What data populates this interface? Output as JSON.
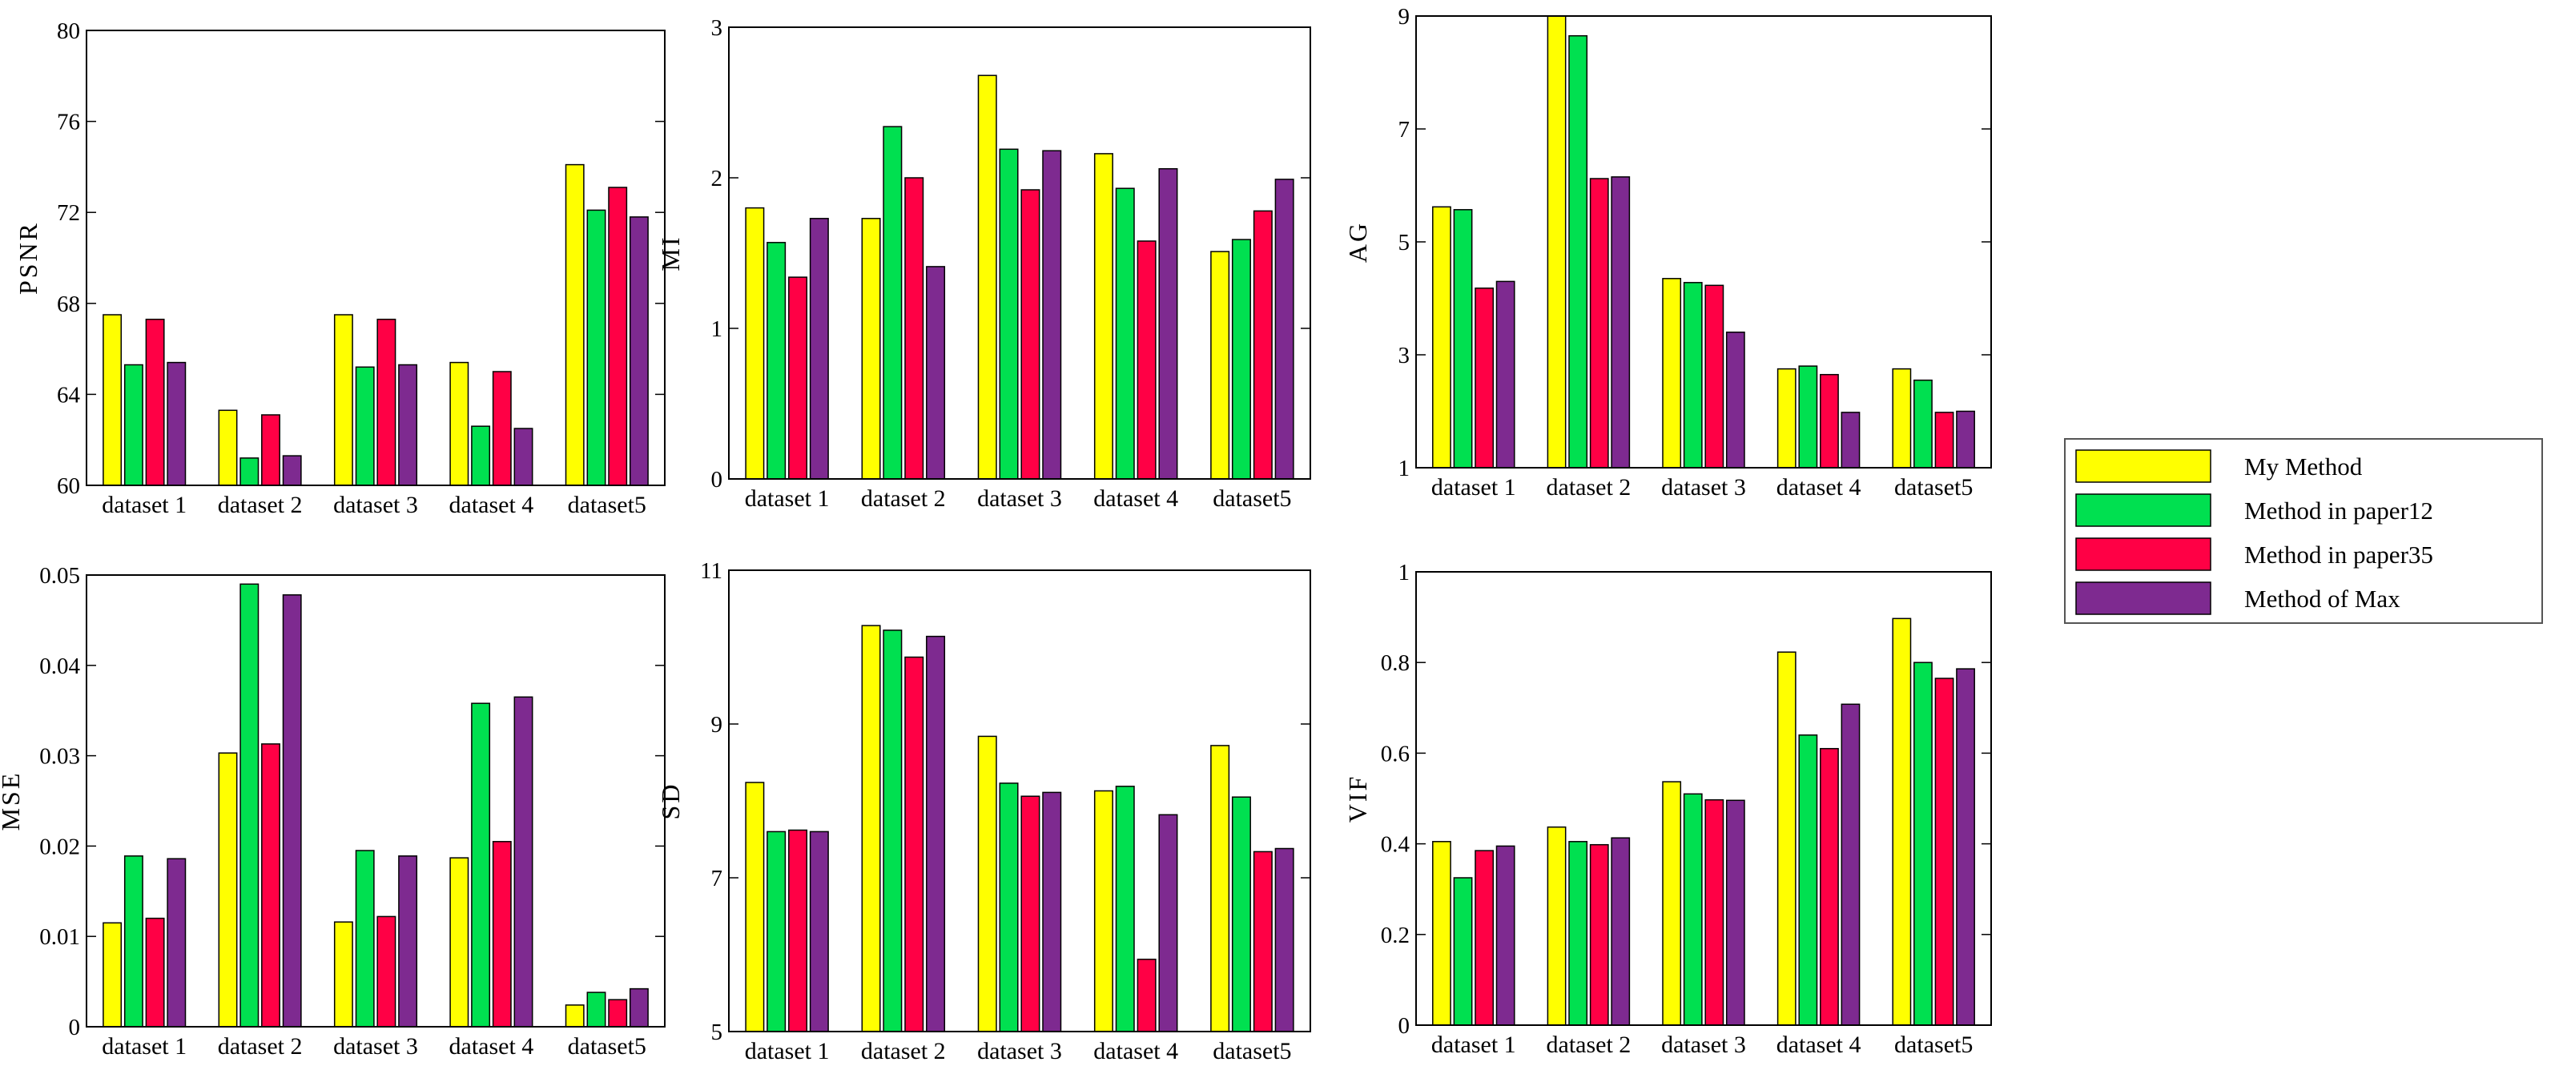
{
  "series_colors": [
    "#ffff00",
    "#00e050",
    "#ff0045",
    "#7e2a90"
  ],
  "legend": [
    "My Method",
    "Method in paper12",
    "Method in paper35",
    "Method of Max"
  ],
  "chart_data": [
    {
      "type": "bar",
      "ylabel": "PSNR",
      "ylim": [
        60,
        80
      ],
      "yticks": [
        60,
        64,
        68,
        72,
        76,
        80
      ],
      "categories": [
        "dataset 1",
        "dataset 2",
        "dataset 3",
        "dataset 4",
        "dataset5"
      ],
      "series": [
        {
          "name": "My Method",
          "values": [
            67.5,
            63.3,
            67.5,
            65.4,
            74.1
          ]
        },
        {
          "name": "Method in paper12",
          "values": [
            65.3,
            61.2,
            65.2,
            62.6,
            72.1
          ]
        },
        {
          "name": "Method in paper35",
          "values": [
            67.3,
            63.1,
            67.3,
            65.0,
            73.1
          ]
        },
        {
          "name": "Method of Max",
          "values": [
            65.4,
            61.3,
            65.3,
            62.5,
            71.8
          ]
        }
      ]
    },
    {
      "type": "bar",
      "ylabel": "MI",
      "ylim": [
        0,
        3
      ],
      "yticks": [
        0,
        1,
        2,
        3
      ],
      "categories": [
        "dataset 1",
        "dataset 2",
        "dataset 3",
        "dataset 4",
        "dataset5"
      ],
      "series": [
        {
          "name": "My Method",
          "values": [
            1.8,
            1.73,
            2.68,
            2.16,
            1.51
          ]
        },
        {
          "name": "Method in paper12",
          "values": [
            1.57,
            2.34,
            2.19,
            1.93,
            1.59
          ]
        },
        {
          "name": "Method in paper35",
          "values": [
            1.34,
            2.0,
            1.92,
            1.58,
            1.78
          ]
        },
        {
          "name": "Method of Max",
          "values": [
            1.73,
            1.41,
            2.18,
            2.06,
            1.99
          ]
        }
      ]
    },
    {
      "type": "bar",
      "ylabel": "AG",
      "ylim": [
        1,
        9
      ],
      "yticks": [
        1,
        3,
        5,
        7,
        9
      ],
      "categories": [
        "dataset 1",
        "dataset 2",
        "dataset 3",
        "dataset 4",
        "dataset5"
      ],
      "series": [
        {
          "name": "My Method",
          "values": [
            5.62,
            9.0,
            4.35,
            2.75,
            2.75
          ]
        },
        {
          "name": "Method in paper12",
          "values": [
            5.57,
            8.65,
            4.28,
            2.8,
            2.55
          ]
        },
        {
          "name": "Method in paper35",
          "values": [
            4.18,
            6.12,
            4.23,
            2.65,
            1.98
          ]
        },
        {
          "name": "Method of Max",
          "values": [
            4.3,
            6.15,
            3.4,
            1.98,
            2.0
          ]
        }
      ]
    },
    {
      "type": "bar",
      "ylabel": "MSE",
      "ylim": [
        0,
        0.05
      ],
      "yticks": [
        0,
        0.01,
        0.02,
        0.03,
        0.04,
        0.05
      ],
      "categories": [
        "dataset 1",
        "dataset 2",
        "dataset 3",
        "dataset 4",
        "dataset5"
      ],
      "series": [
        {
          "name": "My Method",
          "values": [
            0.0115,
            0.0303,
            0.0116,
            0.0187,
            0.0024
          ]
        },
        {
          "name": "Method in paper12",
          "values": [
            0.0189,
            0.049,
            0.0195,
            0.0358,
            0.0038
          ]
        },
        {
          "name": "Method in paper35",
          "values": [
            0.012,
            0.0313,
            0.0122,
            0.0205,
            0.003
          ]
        },
        {
          "name": "Method of Max",
          "values": [
            0.0186,
            0.0478,
            0.0189,
            0.0365,
            0.0042
          ]
        }
      ]
    },
    {
      "type": "bar",
      "ylabel": "SD",
      "ylim": [
        5,
        11
      ],
      "yticks": [
        5,
        7,
        9,
        11
      ],
      "categories": [
        "dataset 1",
        "dataset 2",
        "dataset 3",
        "dataset 4",
        "dataset5"
      ],
      "series": [
        {
          "name": "My Method",
          "values": [
            8.24,
            10.28,
            8.84,
            8.13,
            8.72
          ]
        },
        {
          "name": "Method in paper12",
          "values": [
            7.6,
            10.22,
            8.23,
            8.19,
            8.05
          ]
        },
        {
          "name": "Method in paper35",
          "values": [
            7.62,
            9.87,
            8.06,
            5.94,
            7.34
          ]
        },
        {
          "name": "Method of Max",
          "values": [
            7.6,
            10.14,
            8.11,
            7.82,
            7.38
          ]
        }
      ]
    },
    {
      "type": "bar",
      "ylabel": "VIF",
      "ylim": [
        0,
        1
      ],
      "yticks": [
        0,
        0.2,
        0.4,
        0.6,
        0.8,
        1
      ],
      "categories": [
        "dataset 1",
        "dataset 2",
        "dataset 3",
        "dataset 4",
        "dataset5"
      ],
      "series": [
        {
          "name": "My Method",
          "values": [
            0.405,
            0.437,
            0.537,
            0.823,
            0.897
          ]
        },
        {
          "name": "Method in paper12",
          "values": [
            0.325,
            0.405,
            0.51,
            0.64,
            0.8
          ]
        },
        {
          "name": "Method in paper35",
          "values": [
            0.385,
            0.398,
            0.497,
            0.61,
            0.765
          ]
        },
        {
          "name": "Method of Max",
          "values": [
            0.395,
            0.413,
            0.496,
            0.708,
            0.786
          ]
        }
      ]
    }
  ]
}
